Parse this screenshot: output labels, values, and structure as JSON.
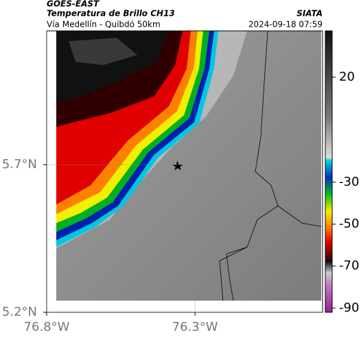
{
  "header": {
    "source": "GOES-EAST",
    "title": "Temperatura de Brillo CH13",
    "subtitle": "Vía Medellín - Quibdó 50km",
    "agency": "SIATA",
    "timestamp": "2024-09-18 07:59"
  },
  "map": {
    "xlim": [
      -76.8,
      -75.87
    ],
    "ylim": [
      5.2,
      6.153
    ],
    "xticks": [
      {
        "value": -76.8,
        "label": "76.8°W"
      },
      {
        "value": -76.3,
        "label": "76.3°W"
      }
    ],
    "yticks": [
      {
        "value": 5.7,
        "label": "5.7°N"
      },
      {
        "value": 5.2,
        "label": "5.2°N"
      }
    ],
    "colorbar": {
      "lim": [
        -92,
        42
      ],
      "ticks": [
        20,
        -30,
        -50,
        -70,
        -90
      ]
    }
  }
}
